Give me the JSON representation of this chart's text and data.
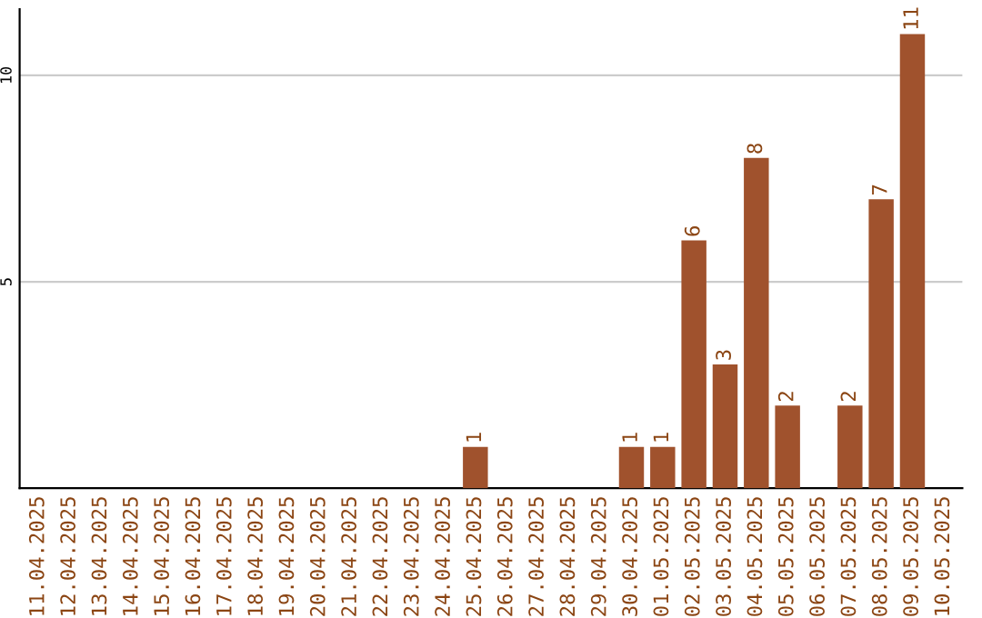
{
  "chart_data": {
    "type": "bar",
    "categories": [
      "11.04.2025",
      "12.04.2025",
      "13.04.2025",
      "14.04.2025",
      "15.04.2025",
      "16.04.2025",
      "17.04.2025",
      "18.04.2025",
      "19.04.2025",
      "20.04.2025",
      "21.04.2025",
      "22.04.2025",
      "23.04.2025",
      "24.04.2025",
      "25.04.2025",
      "26.04.2025",
      "27.04.2025",
      "28.04.2025",
      "29.04.2025",
      "30.04.2025",
      "01.05.2025",
      "02.05.2025",
      "03.05.2025",
      "04.05.2025",
      "05.05.2025",
      "06.05.2025",
      "07.05.2025",
      "08.05.2025",
      "09.05.2025",
      "10.05.2025"
    ],
    "values": [
      0,
      0,
      0,
      0,
      0,
      0,
      0,
      0,
      0,
      0,
      0,
      0,
      0,
      0,
      1,
      0,
      0,
      0,
      0,
      1,
      1,
      6,
      3,
      8,
      2,
      0,
      2,
      7,
      11,
      0
    ],
    "value_labels": [
      null,
      null,
      null,
      null,
      null,
      null,
      null,
      null,
      null,
      null,
      null,
      null,
      null,
      null,
      "1",
      null,
      null,
      null,
      null,
      "1",
      "1",
      "6",
      "3",
      "8",
      "2",
      null,
      "2",
      "7",
      "11",
      null
    ],
    "color": "#a0522d",
    "ylim": [
      0,
      11.6
    ],
    "yticks": [
      5,
      10
    ],
    "grid": "y"
  }
}
